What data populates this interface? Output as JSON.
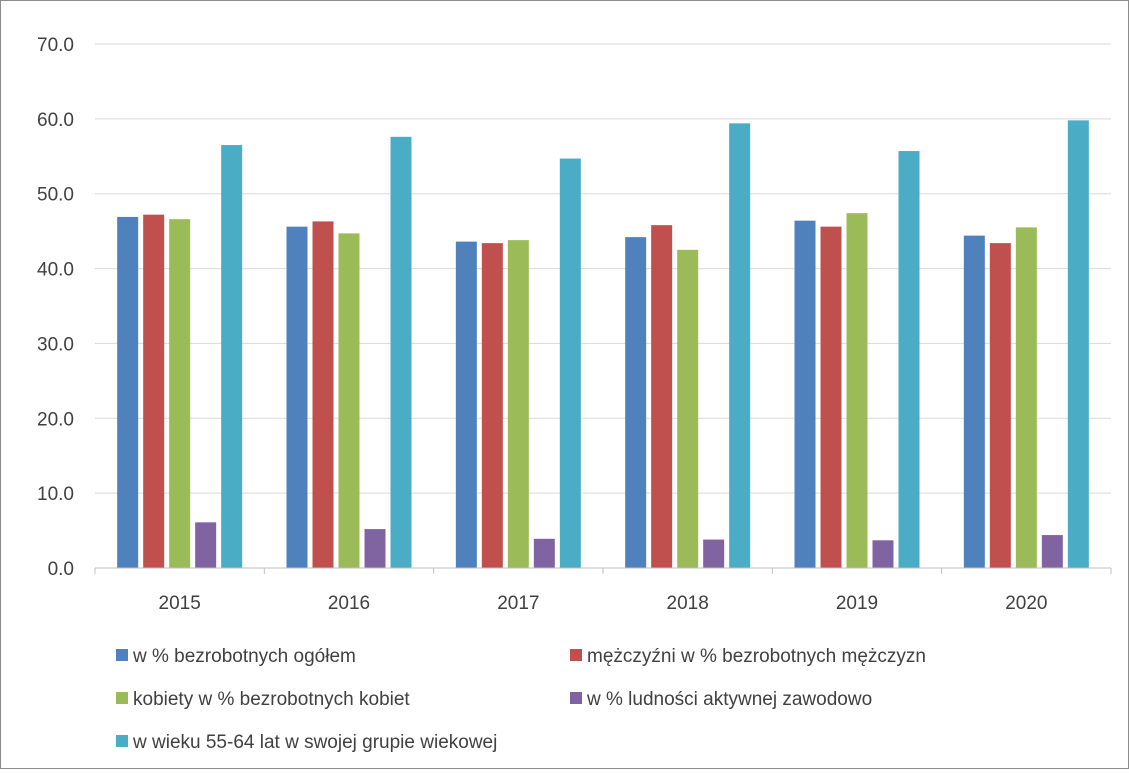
{
  "chart_data": {
    "type": "bar",
    "categories": [
      "2015",
      "2016",
      "2017",
      "2018",
      "2019",
      "2020"
    ],
    "series": [
      {
        "name": "w % bezrobotnych ogółem",
        "color": "#4F81BD",
        "values": [
          46.9,
          45.6,
          43.6,
          44.2,
          46.4,
          44.4
        ]
      },
      {
        "name": "mężczyźni w % bezrobotnych mężczyzn",
        "color": "#C0504D",
        "values": [
          47.2,
          46.3,
          43.4,
          45.8,
          45.6,
          43.4
        ]
      },
      {
        "name": "kobiety w % bezrobotnych kobiet",
        "color": "#9BBB59",
        "values": [
          46.6,
          44.7,
          43.8,
          42.5,
          47.4,
          45.5
        ]
      },
      {
        "name": "w % ludności aktywnej zawodowo",
        "color": "#8064A2",
        "values": [
          6.1,
          5.2,
          3.9,
          3.8,
          3.7,
          4.4
        ]
      },
      {
        "name": "w wieku 55-64 lat w swojej grupie wiekowej",
        "color": "#4BACC6",
        "values": [
          56.5,
          57.6,
          54.7,
          59.4,
          55.7,
          59.8
        ]
      }
    ],
    "ylim": [
      0,
      70
    ],
    "yticks": [
      "0.0",
      "10.0",
      "20.0",
      "30.0",
      "40.0",
      "50.0",
      "60.0",
      "70.0"
    ],
    "grid": true,
    "legend": "bottom",
    "title": "",
    "xlabel": "",
    "ylabel": ""
  }
}
